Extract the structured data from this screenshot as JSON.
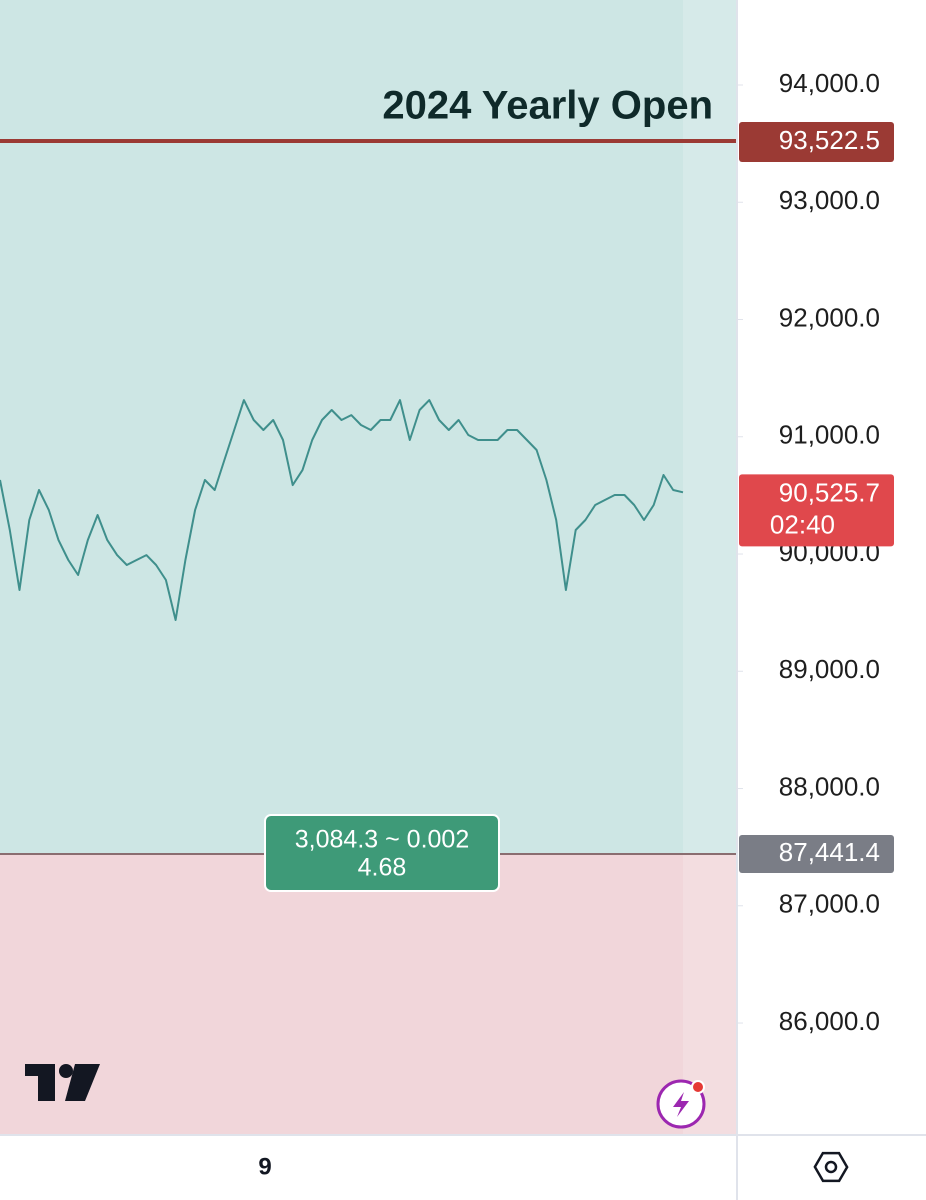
{
  "chart_data": {
    "type": "line",
    "annotation": "2024 Yearly Open",
    "categories": [
      null,
      null,
      null,
      null,
      null,
      null,
      null,
      null,
      null,
      null,
      null,
      null,
      null,
      null,
      null,
      null,
      null,
      null,
      null,
      null,
      null,
      null,
      null,
      null,
      null,
      null,
      null,
      null,
      null,
      null,
      null,
      null,
      null,
      null,
      null,
      null,
      null,
      null,
      null,
      null,
      null,
      null,
      null,
      null,
      null,
      null,
      null,
      null,
      null,
      null,
      null,
      null,
      null,
      null,
      null,
      null,
      null,
      null,
      null,
      null,
      null,
      null,
      null,
      null,
      null,
      null,
      null,
      null,
      null,
      null,
      null
    ],
    "values": [
      90631,
      90205,
      89693,
      90290,
      90546,
      90375,
      90119,
      89949,
      89821,
      90119,
      90333,
      90119,
      89991,
      89906,
      89949,
      89991,
      89906,
      89778,
      89437,
      89949,
      90375,
      90631,
      90546,
      90802,
      91058,
      91313,
      91143,
      91058,
      91143,
      90972,
      90588,
      90716,
      90972,
      91143,
      91228,
      91143,
      91185,
      91100,
      91058,
      91143,
      91143,
      91313,
      90972,
      91228,
      91313,
      91143,
      91058,
      91143,
      91015,
      90972,
      90972,
      90972,
      91058,
      91058,
      90972,
      90887,
      90631,
      90290,
      89693,
      90205,
      90290,
      90418,
      90461,
      90503,
      90503,
      90418,
      90290,
      90418,
      90674,
      90546,
      90526
    ],
    "color": "#3f8f8c",
    "ylim": [
      85045,
      94725
    ],
    "yticks": [
      {
        "value": 86000,
        "label": "86,000.0"
      },
      {
        "value": 87000,
        "label": "87,000.0"
      },
      {
        "value": 88000,
        "label": "88,000.0"
      },
      {
        "value": 89000,
        "label": "89,000.0"
      },
      {
        "value": 90000,
        "label": "90,000.0"
      },
      {
        "value": 91000,
        "label": "91,000.0"
      },
      {
        "value": 92000,
        "label": "92,000.0"
      },
      {
        "value": 93000,
        "label": "93,000.0"
      },
      {
        "value": 94000,
        "label": "94,000.0"
      }
    ],
    "yearly_open": {
      "value": 93522.5,
      "label": "93,522.5",
      "color": "#9b3a34"
    },
    "current_price": {
      "value": 90525.7,
      "label": "90,525.7",
      "countdown": "02:40",
      "color": "#e0484c"
    },
    "stop_level": {
      "value": 87441.4,
      "label": "87,441.4",
      "color": "#7a7d86"
    },
    "measure": {
      "lines": [
        "3,084.3 ~ 0.002",
        "4.68"
      ],
      "color": "#3e9a78"
    }
  },
  "ui": {
    "bottom_bar": {
      "interval": "9"
    }
  }
}
